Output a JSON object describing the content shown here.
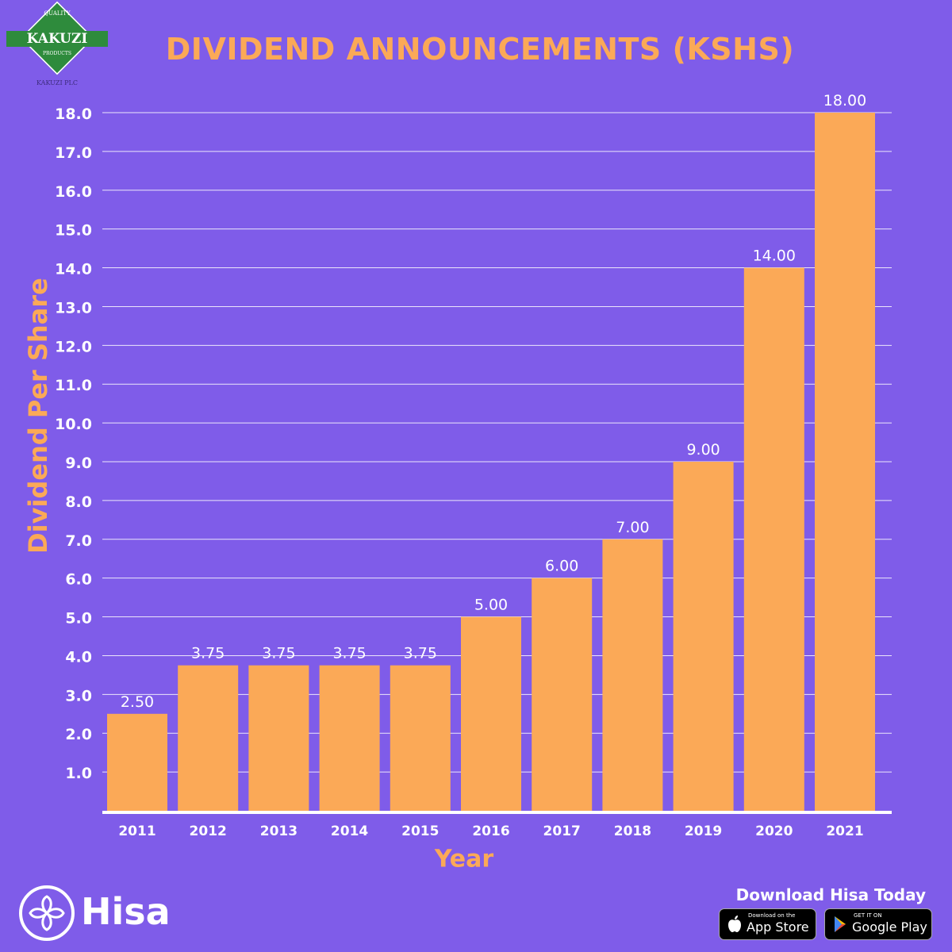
{
  "title": "DIVIDEND ANNOUNCEMENTS (KSHS)",
  "logo": {
    "top_text": "QUALITY",
    "name": "KAKUZI",
    "bottom_text": "PRODUCTS",
    "subtext": "KAKUZI PLC"
  },
  "chart_data": {
    "type": "bar",
    "categories": [
      "2011",
      "2012",
      "2013",
      "2014",
      "2015",
      "2016",
      "2017",
      "2018",
      "2019",
      "2020",
      "2021"
    ],
    "values": [
      2.5,
      3.75,
      3.75,
      3.75,
      3.75,
      5.0,
      6.0,
      7.0,
      9.0,
      14.0,
      18.0
    ],
    "data_labels": [
      "2.50",
      "3.75",
      "3.75",
      "3.75",
      "3.75",
      "5.00",
      "6.00",
      "7.00",
      "9.00",
      "14.00",
      "18.00"
    ],
    "xlabel": "Year",
    "ylabel": "Dividend Per Share",
    "ylim": [
      0,
      18
    ],
    "yticks": [
      "1.0",
      "2.0",
      "3.0",
      "4.0",
      "5.0",
      "6.0",
      "7.0",
      "8.0",
      "9.0",
      "10.0",
      "11.0",
      "12.0",
      "13.0",
      "14.0",
      "15.0",
      "16.0",
      "17.0",
      "18.0"
    ],
    "grid": true,
    "bar_color": "#fba957",
    "background_color": "#7f5ce9",
    "grid_color": "#ffffff"
  },
  "brand": {
    "name": "Hisa",
    "icon": "hisa-flower-icon"
  },
  "download": {
    "heading": "Download Hisa Today",
    "app_store_small": "Download on the",
    "app_store_big": "App Store",
    "google_small": "GET IT ON",
    "google_big": "Google Play"
  }
}
